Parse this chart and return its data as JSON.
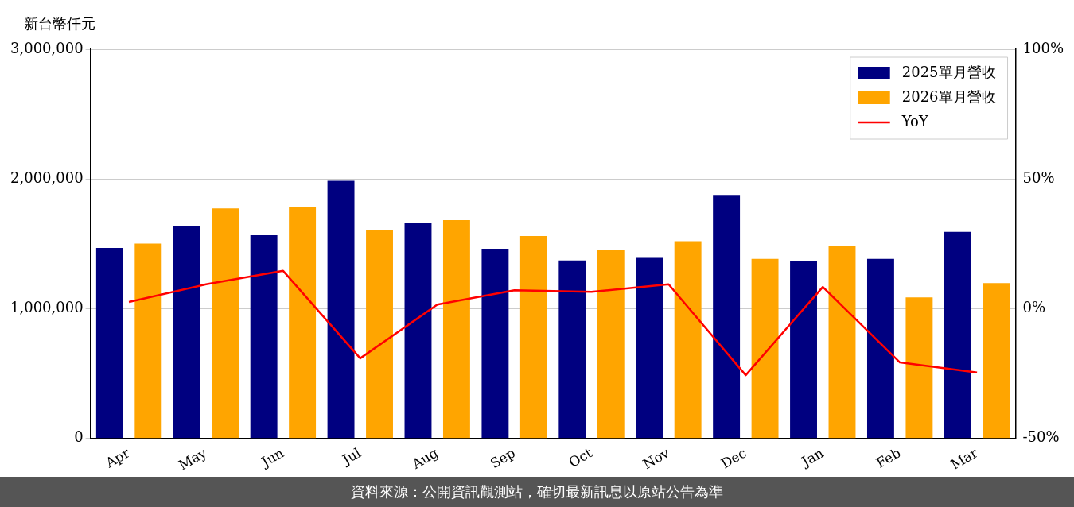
{
  "chart_data": {
    "type": "bar",
    "ylabel": "新台幣仟元",
    "categories": [
      "Apr",
      "May",
      "Jun",
      "Jul",
      "Aug",
      "Sep",
      "Oct",
      "Nov",
      "Dec",
      "Jan",
      "Feb",
      "Mar"
    ],
    "series": [
      {
        "name": "2025單月營收",
        "color": "#000080",
        "values": [
          1469000,
          1638000,
          1566000,
          1987000,
          1663000,
          1463000,
          1372000,
          1392000,
          1871000,
          1366000,
          1385000,
          1592000
        ]
      },
      {
        "name": "2026單月營收",
        "color": "#ffa500",
        "values": [
          1502000,
          1773000,
          1786000,
          1605000,
          1683000,
          1560000,
          1450000,
          1521000,
          1385000,
          1482000,
          1087000,
          1197000
        ]
      },
      {
        "name": "YoY",
        "type": "line",
        "axis": "y2",
        "color": "#ff0000",
        "values": [
          2.6,
          9.4,
          14.6,
          -19.1,
          1.6,
          7.1,
          6.5,
          9.4,
          -25.6,
          8.4,
          -20.7,
          -24.6
        ]
      }
    ],
    "ylim": [
      0,
      3000000
    ],
    "yticks": [
      {
        "value": 0,
        "label": "0"
      },
      {
        "value": 1000000,
        "label": "1,000,000"
      },
      {
        "value": 2000000,
        "label": "2,000,000"
      },
      {
        "value": 3000000,
        "label": "3,000,000"
      }
    ],
    "y2lim": [
      -50,
      100
    ],
    "y2ticks": [
      {
        "value": -50,
        "label": "-50%"
      },
      {
        "value": 0,
        "label": "0%"
      },
      {
        "value": 50,
        "label": "50%"
      },
      {
        "value": 100,
        "label": "100%"
      }
    ],
    "grid": "y",
    "legend": "top right",
    "annotations": [
      "資料來源：公開資訊觀測站，確切最新訊息以原站公告為準"
    ]
  }
}
